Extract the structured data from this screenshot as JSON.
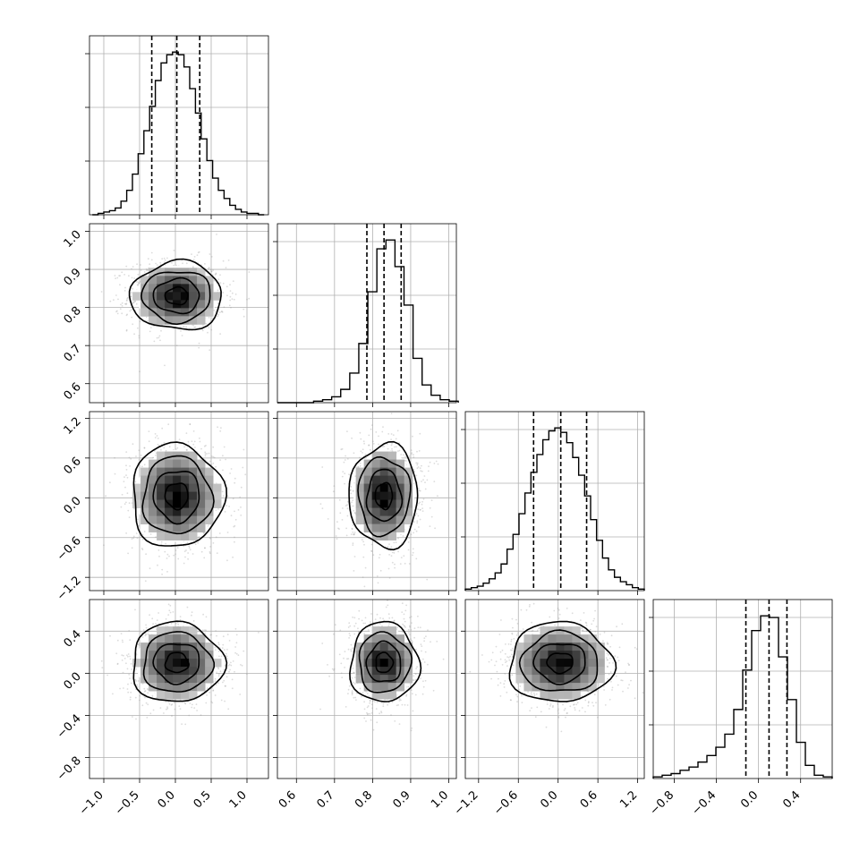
{
  "chart_data": {
    "type": "corner",
    "grid": true,
    "colors": {
      "line": "#000000",
      "grid": "#b0b0b0",
      "scatter": "#9a9a9a"
    },
    "variables": [
      {
        "range": [
          -1.2,
          1.3
        ],
        "ticks": [
          -1.0,
          -0.5,
          0.0,
          0.5,
          1.0
        ],
        "tick_labels": [
          "−1.0",
          "−0.5",
          "0.0",
          "0.5",
          "1.0"
        ],
        "quantiles": [
          -0.33,
          0.02,
          0.34
        ],
        "hist_centers": [
          -1.12,
          -1.04,
          -0.96,
          -0.88,
          -0.8,
          -0.72,
          -0.64,
          -0.56,
          -0.48,
          -0.4,
          -0.32,
          -0.24,
          -0.16,
          -0.08,
          0.0,
          0.08,
          0.16,
          0.24,
          0.32,
          0.4,
          0.48,
          0.56,
          0.64,
          0.72,
          0.8,
          0.88,
          0.96,
          1.04,
          1.12,
          1.2
        ],
        "hist_counts": [
          0,
          1,
          2,
          3,
          5,
          10,
          18,
          30,
          45,
          62,
          80,
          99,
          112,
          118,
          120,
          118,
          109,
          93,
          75,
          56,
          40,
          27,
          18,
          12,
          7,
          4,
          2,
          1,
          1,
          0
        ]
      },
      {
        "range": [
          0.55,
          1.02
        ],
        "ticks": [
          0.6,
          0.7,
          0.8,
          0.9,
          1.0
        ],
        "tick_labels": [
          "0.6",
          "0.7",
          "0.8",
          "0.9",
          "1.0"
        ],
        "quantiles": [
          0.785,
          0.83,
          0.875
        ],
        "hist_centers": [
          0.5619,
          0.5856,
          0.6094,
          0.6331,
          0.6569,
          0.6806,
          0.7044,
          0.7281,
          0.7519,
          0.7756,
          0.7994,
          0.8231,
          0.8469,
          0.8706,
          0.8944,
          0.9181,
          0.9419,
          0.9656,
          0.9894,
          1.0131
        ],
        "hist_counts": [
          0,
          0,
          0,
          0,
          1,
          2,
          4,
          9,
          20,
          40,
          75,
          104,
          110,
          92,
          66,
          30,
          12,
          5,
          2,
          1
        ]
      },
      {
        "range": [
          -1.4,
          1.3
        ],
        "ticks": [
          -1.2,
          -0.6,
          0.0,
          0.6,
          1.2
        ],
        "tick_labels": [
          "−1.2",
          "−0.6",
          "0.0",
          "0.6",
          "1.2"
        ],
        "quantiles": [
          -0.37,
          0.04,
          0.43
        ],
        "hist_centers": [
          -1.355,
          -1.265,
          -1.175,
          -1.085,
          -0.995,
          -0.905,
          -0.815,
          -0.725,
          -0.635,
          -0.545,
          -0.455,
          -0.365,
          -0.275,
          -0.185,
          -0.095,
          -0.005,
          0.085,
          0.175,
          0.265,
          0.355,
          0.445,
          0.535,
          0.625,
          0.715,
          0.805,
          0.895,
          0.985,
          1.075,
          1.165,
          1.255
        ],
        "hist_counts": [
          1,
          2,
          3,
          5,
          8,
          12,
          18,
          28,
          38,
          52,
          66,
          80,
          92,
          102,
          108,
          110,
          107,
          100,
          90,
          78,
          64,
          48,
          34,
          22,
          14,
          9,
          6,
          4,
          2,
          1
        ]
      },
      {
        "range": [
          -1.0,
          0.7
        ],
        "ticks": [
          -0.8,
          -0.4,
          0.0,
          0.4
        ],
        "tick_labels": [
          "−0.8",
          "−0.4",
          "0.0",
          "0.4"
        ],
        "quantiles": [
          -0.12,
          0.1,
          0.27
        ],
        "hist_centers": [
          -0.9575,
          -0.8725,
          -0.7875,
          -0.7025,
          -0.6175,
          -0.5325,
          -0.4475,
          -0.3625,
          -0.2775,
          -0.1925,
          -0.1075,
          -0.0225,
          0.0625,
          0.1475,
          0.2325,
          0.3175,
          0.4025,
          0.4875,
          0.5725,
          0.6575
        ],
        "hist_counts": [
          1,
          2,
          3,
          5,
          7,
          10,
          14,
          19,
          27,
          42,
          66,
          90,
          99,
          98,
          74,
          48,
          22,
          8,
          2,
          1
        ]
      }
    ],
    "pairs": [
      {
        "row": 1,
        "col": 0,
        "mean": [
          0.02,
          0.83
        ],
        "sd": [
          0.32,
          0.045
        ]
      },
      {
        "row": 2,
        "col": 0,
        "mean": [
          0.02,
          0.03
        ],
        "sd": [
          0.32,
          0.39
        ]
      },
      {
        "row": 2,
        "col": 1,
        "mean": [
          0.83,
          0.03
        ],
        "sd": [
          0.045,
          0.39
        ]
      },
      {
        "row": 3,
        "col": 0,
        "mean": [
          0.02,
          0.1
        ],
        "sd": [
          0.32,
          0.19
        ]
      },
      {
        "row": 3,
        "col": 1,
        "mean": [
          0.83,
          0.1
        ],
        "sd": [
          0.045,
          0.19
        ]
      },
      {
        "row": 3,
        "col": 2,
        "mean": [
          0.03,
          0.1
        ],
        "sd": [
          0.39,
          0.19
        ]
      }
    ]
  }
}
